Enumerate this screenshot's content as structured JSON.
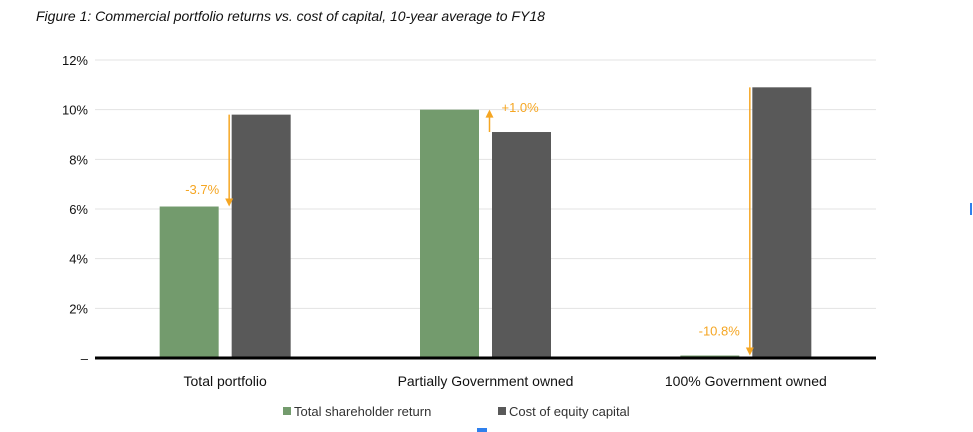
{
  "title": "Figure 1: Commercial portfolio returns vs. cost of capital, 10-year average to FY18",
  "colors": {
    "tsr": "#739b6d",
    "coe": "#595959",
    "annotation": "#f5a623",
    "grid": "#e3e3e3",
    "axis": "#000000"
  },
  "chart_data": {
    "type": "bar",
    "categories": [
      "Total portfolio",
      "Partially Government owned",
      "100% Government owned"
    ],
    "series": [
      {
        "name": "Total shareholder return",
        "values": [
          6.1,
          10.0,
          0.1
        ]
      },
      {
        "name": "Cost of equity capital",
        "values": [
          9.8,
          9.1,
          10.9
        ]
      }
    ],
    "ylim": [
      0,
      12
    ],
    "yticks": [
      0,
      2,
      4,
      6,
      8,
      10,
      12
    ],
    "ytick_labels": [
      "–",
      "2%",
      "4%",
      "6%",
      "8%",
      "10%",
      "12%"
    ],
    "grid": true,
    "legend_position": "bottom",
    "annotations": [
      {
        "category": 0,
        "label": "-3.7%",
        "from": 9.8,
        "to": 6.1
      },
      {
        "category": 1,
        "label": "+1.0%",
        "from": 9.1,
        "to": 10.0
      },
      {
        "category": 2,
        "label": "-10.8%",
        "from": 10.9,
        "to": 0.1
      }
    ]
  }
}
